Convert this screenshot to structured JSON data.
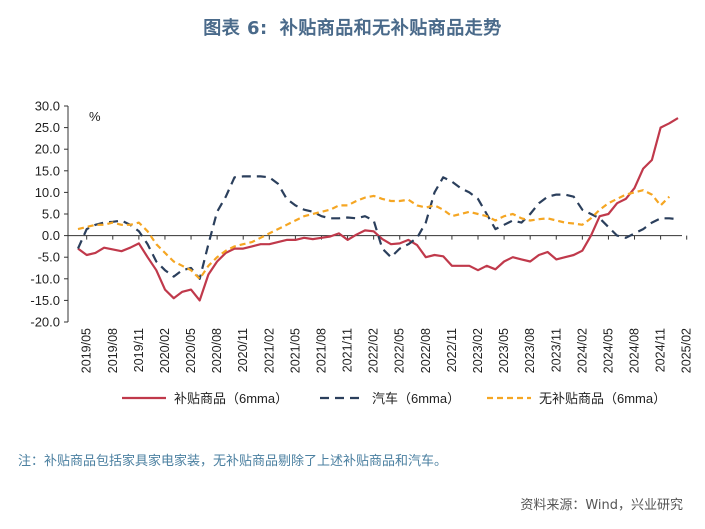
{
  "header": {
    "figure_no": "图表 6:",
    "title": "补贴商品和无补贴商品走势"
  },
  "footer": {
    "note": "注：补贴商品包括家具家电家装，无补贴商品剔除了上述补贴商品和汽车。",
    "source": "资料来源：Wind，兴业研究"
  },
  "colors": {
    "subsidized": "#c0394b",
    "auto": "#2b3f5c",
    "unsubsidized": "#f5a623",
    "axis": "#333333",
    "title": "#4a6a8a"
  },
  "chart_data": {
    "type": "line",
    "unit": "%",
    "ylim": [
      -20,
      30
    ],
    "yticks": [
      "30.0",
      "25.0",
      "20.0",
      "15.0",
      "10.0",
      "5.0",
      "0.0",
      "-5.0",
      "-10.0",
      "-15.0",
      "-20.0"
    ],
    "xtick_labels": [
      "2019/05",
      "2019/08",
      "2019/11",
      "2020/02",
      "2020/05",
      "2020/08",
      "2020/11",
      "2021/02",
      "2021/05",
      "2021/08",
      "2021/11",
      "2022/02",
      "2022/05",
      "2022/08",
      "2022/11",
      "2023/02",
      "2023/05",
      "2023/08",
      "2023/11",
      "2024/02",
      "2024/05",
      "2024/08",
      "2024/11",
      "2025/02"
    ],
    "x_start": "2019/04",
    "legend_position": "bottom",
    "series": [
      {
        "name": "补贴商品（6mma）",
        "style": "solid",
        "color": "#c0394b",
        "values": [
          -3.0,
          -4.5,
          -4.0,
          -2.8,
          -3.2,
          -3.6,
          -2.8,
          -1.8,
          -5.0,
          -8.0,
          -12.5,
          -14.5,
          -13.0,
          -12.5,
          -15.0,
          -9.0,
          -6.0,
          -4.0,
          -3.0,
          -3.0,
          -2.5,
          -2.0,
          -2.0,
          -1.5,
          -1.0,
          -1.0,
          -0.5,
          -0.8,
          -0.5,
          -0.2,
          0.5,
          -1.0,
          0.2,
          1.2,
          1.0,
          -0.8,
          -2.0,
          -1.8,
          -1.0,
          -2.2,
          -5.0,
          -4.5,
          -4.8,
          -7.0,
          -7.0,
          -7.0,
          -8.0,
          -7.0,
          -7.8,
          -6.0,
          -5.0,
          -5.5,
          -6.0,
          -4.5,
          -3.8,
          -5.5,
          -5.0,
          -4.5,
          -3.5,
          0.0,
          4.5,
          5.0,
          7.5,
          8.5,
          11.0,
          15.5,
          17.5,
          25.0,
          26.0,
          27.2
        ]
      },
      {
        "name": "汽车（6mma）",
        "style": "dashed",
        "color": "#2b3f5c",
        "values": [
          -3.0,
          1.5,
          2.5,
          3.0,
          3.2,
          3.5,
          2.5,
          1.0,
          -2.0,
          -6.0,
          -8.0,
          -9.5,
          -8.0,
          -7.5,
          -10.0,
          -2.0,
          5.5,
          9.0,
          13.5,
          13.7,
          13.7,
          13.7,
          13.5,
          12.0,
          8.5,
          7.0,
          6.0,
          5.5,
          4.5,
          4.0,
          4.0,
          4.2,
          4.0,
          4.5,
          3.5,
          -3.0,
          -5.0,
          -3.0,
          -2.0,
          -0.5,
          3.0,
          10.0,
          13.5,
          12.5,
          11.0,
          10.0,
          8.5,
          5.0,
          1.5,
          2.5,
          3.5,
          3.0,
          5.0,
          7.5,
          9.0,
          9.5,
          9.5,
          9.0,
          6.0,
          5.0,
          4.0,
          2.0,
          0.0,
          -0.5,
          0.5,
          1.5,
          3.0,
          4.0,
          4.0,
          3.8
        ]
      },
      {
        "name": "无补贴商品（6mma）",
        "style": "dashed",
        "color": "#f5a623",
        "values": [
          1.5,
          2.0,
          2.5,
          2.5,
          3.0,
          2.5,
          2.5,
          3.0,
          1.0,
          -2.0,
          -4.0,
          -6.0,
          -7.0,
          -8.0,
          -10.0,
          -7.0,
          -5.0,
          -3.5,
          -2.5,
          -2.0,
          -1.5,
          -0.5,
          0.5,
          1.5,
          2.5,
          3.5,
          4.5,
          5.0,
          5.5,
          6.0,
          7.0,
          7.0,
          8.0,
          8.8,
          9.2,
          8.5,
          8.0,
          8.0,
          8.3,
          7.0,
          6.5,
          7.0,
          6.0,
          4.5,
          5.0,
          5.5,
          5.0,
          4.5,
          3.5,
          4.5,
          5.0,
          4.0,
          3.5,
          3.8,
          4.0,
          3.5,
          3.0,
          2.8,
          2.5,
          4.0,
          6.0,
          7.5,
          8.5,
          9.5,
          10.0,
          10.5,
          9.5,
          7.0,
          9.0
        ]
      }
    ]
  }
}
